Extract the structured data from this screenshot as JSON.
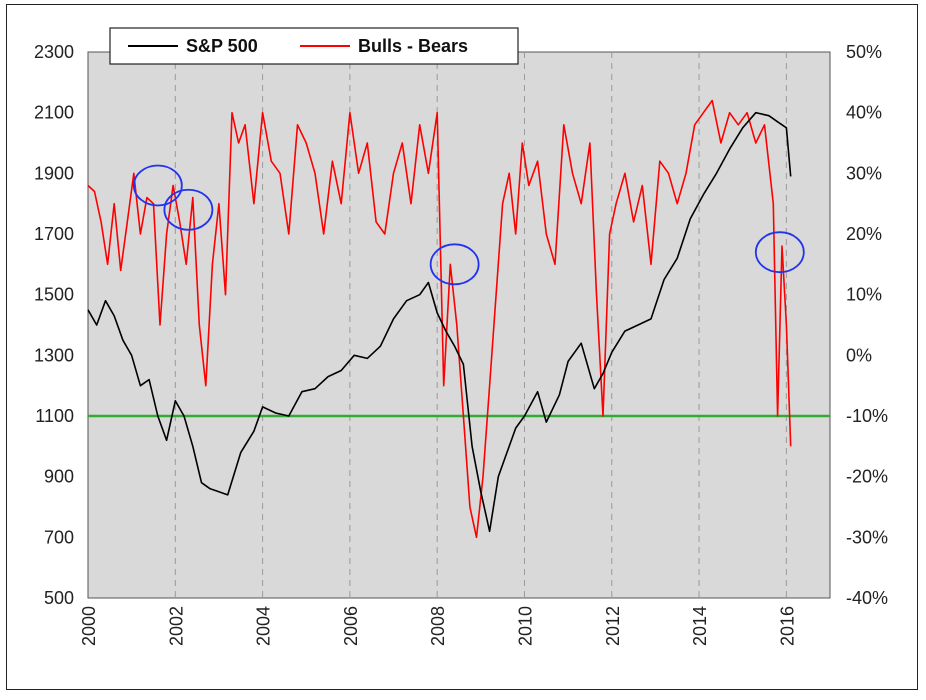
{
  "chart_data": {
    "type": "line",
    "title": "",
    "xlabel": "",
    "ylabel": "",
    "x_ticks": [
      "2000",
      "2002",
      "2004",
      "2006",
      "2008",
      "2010",
      "2012",
      "2014",
      "2016"
    ],
    "xlim": [
      2000,
      2017
    ],
    "y_left": {
      "lim": [
        500,
        2300
      ],
      "ticks": [
        "2300",
        "2100",
        "1900",
        "1700",
        "1500",
        "1300",
        "1100",
        "900",
        "700",
        "500"
      ]
    },
    "y_right": {
      "lim": [
        -40,
        50
      ],
      "ticks": [
        "50%",
        "40%",
        "30%",
        "20%",
        "10%",
        "0%",
        "-10%",
        "-20%",
        "-30%",
        "-40%"
      ]
    },
    "grid": "vertical dashed",
    "background": "#d9d9d9",
    "legend": {
      "placement": "top-left",
      "entries": [
        {
          "label": "S&P 500",
          "color": "#000000"
        },
        {
          "label": "Bulls - Bears",
          "color": "#ff0000"
        }
      ]
    },
    "series": [
      {
        "name": "S&P 500",
        "axis": "left",
        "color": "#000000",
        "x": [
          2000.0,
          2000.2,
          2000.4,
          2000.6,
          2000.8,
          2001.0,
          2001.2,
          2001.4,
          2001.6,
          2001.8,
          2002.0,
          2002.2,
          2002.4,
          2002.6,
          2002.8,
          2003.0,
          2003.2,
          2003.5,
          2003.8,
          2004.0,
          2004.3,
          2004.6,
          2004.9,
          2005.2,
          2005.5,
          2005.8,
          2006.1,
          2006.4,
          2006.7,
          2007.0,
          2007.3,
          2007.6,
          2007.8,
          2008.0,
          2008.2,
          2008.4,
          2008.6,
          2008.8,
          2009.0,
          2009.2,
          2009.4,
          2009.6,
          2009.8,
          2010.0,
          2010.3,
          2010.5,
          2010.8,
          2011.0,
          2011.3,
          2011.6,
          2011.8,
          2012.0,
          2012.3,
          2012.6,
          2012.9,
          2013.2,
          2013.5,
          2013.8,
          2014.1,
          2014.4,
          2014.7,
          2015.0,
          2015.3,
          2015.6,
          2015.8,
          2016.0,
          2016.1
        ],
        "values": [
          1450,
          1400,
          1480,
          1430,
          1350,
          1300,
          1200,
          1220,
          1100,
          1020,
          1150,
          1100,
          1000,
          880,
          860,
          850,
          840,
          980,
          1050,
          1130,
          1110,
          1100,
          1180,
          1190,
          1230,
          1250,
          1300,
          1290,
          1330,
          1420,
          1480,
          1500,
          1540,
          1440,
          1380,
          1330,
          1270,
          1000,
          850,
          720,
          900,
          980,
          1060,
          1100,
          1180,
          1080,
          1170,
          1280,
          1340,
          1190,
          1240,
          1310,
          1380,
          1400,
          1420,
          1550,
          1620,
          1750,
          1830,
          1900,
          1980,
          2050,
          2100,
          2090,
          2070,
          2050,
          1890
        ]
      },
      {
        "name": "Bulls - Bears",
        "axis": "right",
        "color": "#ff0000",
        "x": [
          2000.0,
          2000.15,
          2000.3,
          2000.45,
          2000.6,
          2000.75,
          2000.9,
          2001.05,
          2001.2,
          2001.35,
          2001.5,
          2001.65,
          2001.8,
          2001.95,
          2002.1,
          2002.25,
          2002.4,
          2002.55,
          2002.7,
          2002.85,
          2003.0,
          2003.15,
          2003.3,
          2003.45,
          2003.6,
          2003.8,
          2004.0,
          2004.2,
          2004.4,
          2004.6,
          2004.8,
          2005.0,
          2005.2,
          2005.4,
          2005.6,
          2005.8,
          2006.0,
          2006.2,
          2006.4,
          2006.6,
          2006.8,
          2007.0,
          2007.2,
          2007.4,
          2007.6,
          2007.8,
          2008.0,
          2008.15,
          2008.3,
          2008.45,
          2008.6,
          2008.75,
          2008.9,
          2009.05,
          2009.2,
          2009.35,
          2009.5,
          2009.65,
          2009.8,
          2009.95,
          2010.1,
          2010.3,
          2010.5,
          2010.7,
          2010.9,
          2011.1,
          2011.3,
          2011.5,
          2011.65,
          2011.8,
          2011.95,
          2012.1,
          2012.3,
          2012.5,
          2012.7,
          2012.9,
          2013.1,
          2013.3,
          2013.5,
          2013.7,
          2013.9,
          2014.1,
          2014.3,
          2014.5,
          2014.7,
          2014.9,
          2015.1,
          2015.3,
          2015.5,
          2015.7,
          2015.8,
          2015.9,
          2016.0,
          2016.1
        ],
        "values": [
          28,
          27,
          22,
          15,
          25,
          14,
          22,
          30,
          20,
          26,
          25,
          5,
          20,
          28,
          22,
          15,
          26,
          5,
          -5,
          15,
          25,
          10,
          40,
          35,
          38,
          25,
          40,
          32,
          30,
          20,
          38,
          35,
          30,
          20,
          32,
          25,
          40,
          30,
          35,
          22,
          20,
          30,
          35,
          25,
          38,
          30,
          40,
          -5,
          15,
          5,
          -10,
          -25,
          -30,
          -20,
          -5,
          10,
          25,
          30,
          20,
          35,
          28,
          32,
          20,
          15,
          38,
          30,
          25,
          35,
          10,
          -10,
          20,
          25,
          30,
          22,
          28,
          15,
          32,
          30,
          25,
          30,
          38,
          40,
          42,
          35,
          40,
          38,
          40,
          35,
          38,
          25,
          -10,
          18,
          5,
          -15
        ]
      }
    ],
    "reference_line": {
      "axis": "left",
      "value": 1100,
      "color": "#33aa33"
    },
    "annotations": [
      {
        "shape": "ellipse",
        "color": "#2233ee",
        "x": 2001.6,
        "y": 1860
      },
      {
        "shape": "ellipse",
        "color": "#2233ee",
        "x": 2002.3,
        "y": 1780
      },
      {
        "shape": "ellipse",
        "color": "#2233ee",
        "x": 2008.4,
        "y": 1600
      },
      {
        "shape": "ellipse",
        "color": "#2233ee",
        "x": 2015.85,
        "y": 1640
      }
    ]
  }
}
